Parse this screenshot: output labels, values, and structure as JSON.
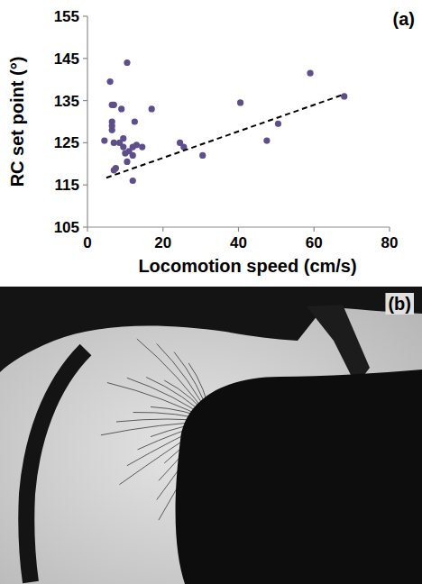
{
  "chart_data": {
    "type": "scatter",
    "title": "(a)",
    "x_label": "Locomotion speed (cm/s)",
    "y_label": "RC set point (°)",
    "xlim": [
      0,
      80
    ],
    "xticks": [
      0,
      20,
      40,
      60,
      80
    ],
    "ylim": [
      105,
      155
    ],
    "yticks": [
      105,
      115,
      125,
      135,
      145,
      155
    ],
    "grid": false,
    "series": [
      {
        "type": "scatter",
        "color": "#5e4f8c",
        "marker": "circle",
        "x": [
          4.5,
          6,
          6.5,
          7,
          6.5,
          6.5,
          6.5,
          7,
          7.5,
          7,
          8.5,
          9,
          9.5,
          9.5,
          10,
          10.5,
          10.5,
          11,
          12,
          12,
          12.5,
          12,
          13,
          14.5,
          17,
          24.5,
          25.5,
          30.5,
          40.5,
          47.5,
          50.5,
          59,
          68
        ],
        "values": [
          125.5,
          139.5,
          134,
          134,
          130,
          129,
          128,
          125,
          119,
          118.5,
          125,
          133,
          126,
          124,
          122.5,
          144,
          120.5,
          123,
          122,
          116,
          130,
          124,
          124.5,
          124,
          133,
          125,
          124,
          122,
          134.5,
          125.5,
          129.5,
          141.5,
          136
        ]
      },
      {
        "type": "line",
        "color": "#000000",
        "line_style": "dashed",
        "x": [
          5,
          68
        ],
        "values": [
          116.7,
          136.5
        ]
      }
    ]
  },
  "photo": {
    "label": "(b)"
  }
}
